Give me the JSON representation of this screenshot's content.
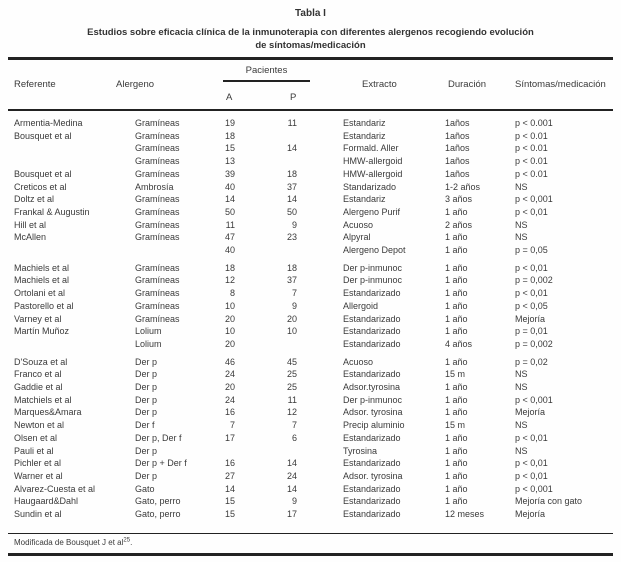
{
  "page": {
    "title": "Tabla I",
    "subtitle_line1": "Estudios sobre eficacia clínica de la inmunoterapia con diferentes alergenos recogiendo evolución",
    "subtitle_line2": "de síntomas/medicación",
    "footnote": {
      "text": "Modificada de Bousquet J et al",
      "reference": "25",
      "suffix": "."
    }
  },
  "colors": {
    "text": "#3a3a3a",
    "rule": "#222222",
    "background": "#fefefe"
  },
  "table": {
    "headers": {
      "referente": "Referente",
      "alergeno": "Alergeno",
      "pacientes": "Pacientes",
      "pacientes_a": "A",
      "pacientes_p": "P",
      "extracto": "Extracto",
      "duracion": "Duración",
      "sintomas": "Síntomas/medicación"
    },
    "groups": [
      {
        "rows": [
          {
            "referente": "Armentia-Medina",
            "alergeno": "Gramíneas",
            "a": "19",
            "p": "11",
            "extracto": "Estandariz",
            "duracion": "1años",
            "sintomas": "p < 0.001"
          },
          {
            "referente": "Bousquet et al",
            "alergeno": "Gramíneas",
            "a": "18",
            "p": "",
            "extracto": "Estandariz",
            "duracion": "1años",
            "sintomas": "p < 0.01"
          },
          {
            "referente": "",
            "alergeno": "Gramíneas",
            "a": "15",
            "p": "14",
            "extracto": "Formald. Aller",
            "duracion": "1años",
            "sintomas": "p < 0.01"
          },
          {
            "referente": "",
            "alergeno": "Gramíneas",
            "a": "13",
            "p": "",
            "extracto": "HMW-allergoid",
            "duracion": "1años",
            "sintomas": "p < 0.01"
          },
          {
            "referente": "Bousquet et al",
            "alergeno": "Gramíneas",
            "a": "39",
            "p": "18",
            "extracto": "HMW-allergoid",
            "duracion": "1años",
            "sintomas": "p < 0.01"
          },
          {
            "referente": "Creticos et al",
            "alergeno": "Ambrosía",
            "a": "40",
            "p": "37",
            "extracto": "Standarizado",
            "duracion": "1-2 años",
            "sintomas": "NS"
          },
          {
            "referente": "Doltz et al",
            "alergeno": "Gramíneas",
            "a": "14",
            "p": "14",
            "extracto": "Estandariz",
            "duracion": "3 años",
            "sintomas": "p < 0,001"
          },
          {
            "referente": "Frankal & Augustin",
            "alergeno": "Gramíneas",
            "a": "50",
            "p": "50",
            "extracto": "Alergeno Purif",
            "duracion": "1 año",
            "sintomas": "p < 0,01"
          },
          {
            "referente": "Hill et al",
            "alergeno": "Gramíneas",
            "a": "11",
            "p": "9",
            "extracto": "Acuoso",
            "duracion": "2 años",
            "sintomas": "NS"
          },
          {
            "referente": "McAllen",
            "alergeno": "Gramíneas",
            "a": "47",
            "p": "23",
            "extracto": "Alpyral",
            "duracion": "1 año",
            "sintomas": "NS"
          },
          {
            "referente": "",
            "alergeno": "",
            "a": "40",
            "p": "",
            "extracto": "Alergeno Depot",
            "duracion": "1 año",
            "sintomas": "p = 0,05"
          }
        ]
      },
      {
        "rows": [
          {
            "referente": "Machiels et al",
            "alergeno": "Gramíneas",
            "a": "18",
            "p": "18",
            "extracto": "Der p-inmunoc",
            "duracion": "1 año",
            "sintomas": "p < 0,01"
          },
          {
            "referente": "Machiels et al",
            "alergeno": "Gramíneas",
            "a": "12",
            "p": "37",
            "extracto": "Der p-inmunoc",
            "duracion": "1 año",
            "sintomas": "p = 0,002"
          },
          {
            "referente": "Ortolani et al",
            "alergeno": "Gramíneas",
            "a": "8",
            "p": "7",
            "extracto": "Estandarizado",
            "duracion": "1 año",
            "sintomas": "p < 0,01"
          },
          {
            "referente": "Pastorello et al",
            "alergeno": "Gramíneas",
            "a": "10",
            "p": "9",
            "extracto": "Allergoid",
            "duracion": "1 año",
            "sintomas": "p < 0,05"
          },
          {
            "referente": "Varney et al",
            "alergeno": "Gramíneas",
            "a": "20",
            "p": "20",
            "extracto": "Estandarizado",
            "duracion": "1 año",
            "sintomas": "Mejoría"
          },
          {
            "referente": "Martín Muñoz",
            "alergeno": "Lolium",
            "a": "10",
            "p": "10",
            "extracto": "Estandarizado",
            "duracion": "1 año",
            "sintomas": "p = 0,01"
          },
          {
            "referente": "",
            "alergeno": "Lolium",
            "a": "20",
            "p": "",
            "extracto": "Estandarizado",
            "duracion": "4 años",
            "sintomas": "p = 0,002"
          }
        ]
      },
      {
        "rows": [
          {
            "referente": "D'Souza et al",
            "alergeno": "Der p",
            "a": "46",
            "p": "45",
            "extracto": "Acuoso",
            "duracion": "1 año",
            "sintomas": "p = 0,02"
          },
          {
            "referente": "Franco et al",
            "alergeno": "Der p",
            "a": "24",
            "p": "25",
            "extracto": "Estandarizado",
            "duracion": "15 m",
            "sintomas": "NS"
          },
          {
            "referente": "Gaddie et al",
            "alergeno": "Der p",
            "a": "20",
            "p": "25",
            "extracto": "Adsor.tyrosina",
            "duracion": "1 año",
            "sintomas": "NS"
          },
          {
            "referente": "Matchiels et al",
            "alergeno": "Der p",
            "a": "24",
            "p": "11",
            "extracto": "Der p-inmunoc",
            "duracion": "1 año",
            "sintomas": "p < 0,001"
          },
          {
            "referente": "Marques&Amara",
            "alergeno": "Der p",
            "a": "16",
            "p": "12",
            "extracto": "Adsor. tyrosina",
            "duracion": "1 año",
            "sintomas": "Mejoría"
          },
          {
            "referente": "Newton et al",
            "alergeno": "Der f",
            "a": "7",
            "p": "7",
            "extracto": "Precip aluminio",
            "duracion": "15 m",
            "sintomas": "NS"
          },
          {
            "referente": "Olsen et al",
            "alergeno": "Der p, Der f",
            "a": "17",
            "p": "6",
            "extracto": "Estandarizado",
            "duracion": "1 año",
            "sintomas": "p < 0,01"
          },
          {
            "referente": "Pauli et al",
            "alergeno": "Der p",
            "a": "",
            "p": "",
            "extracto": "Tyrosina",
            "duracion": "1 año",
            "sintomas": "NS"
          },
          {
            "referente": "Pichler et al",
            "alergeno": "Der p + Der f",
            "a": "16",
            "p": "14",
            "extracto": "Estandarizado",
            "duracion": "1 año",
            "sintomas": "p < 0,01"
          },
          {
            "referente": "Warner et al",
            "alergeno": "Der p",
            "a": "27",
            "p": "24",
            "extracto": "Adsor. tyrosina",
            "duracion": "1 año",
            "sintomas": "p < 0,01"
          },
          {
            "referente": "Alvarez-Cuesta et al",
            "alergeno": "Gato",
            "a": "14",
            "p": "14",
            "extracto": "Estandarizado",
            "duracion": "1 año",
            "sintomas": "p < 0,001"
          },
          {
            "referente": "Haugaard&Dahl",
            "alergeno": "Gato, perro",
            "a": "15",
            "p": "9",
            "extracto": "Estandarizado",
            "duracion": "1 año",
            "sintomas": "Mejoría con gato"
          },
          {
            "referente": "Sundin et al",
            "alergeno": "Gato, perro",
            "a": "15",
            "p": "17",
            "extracto": "Estandarizado",
            "duracion": "12 meses",
            "sintomas": "Mejoría"
          }
        ]
      }
    ]
  }
}
